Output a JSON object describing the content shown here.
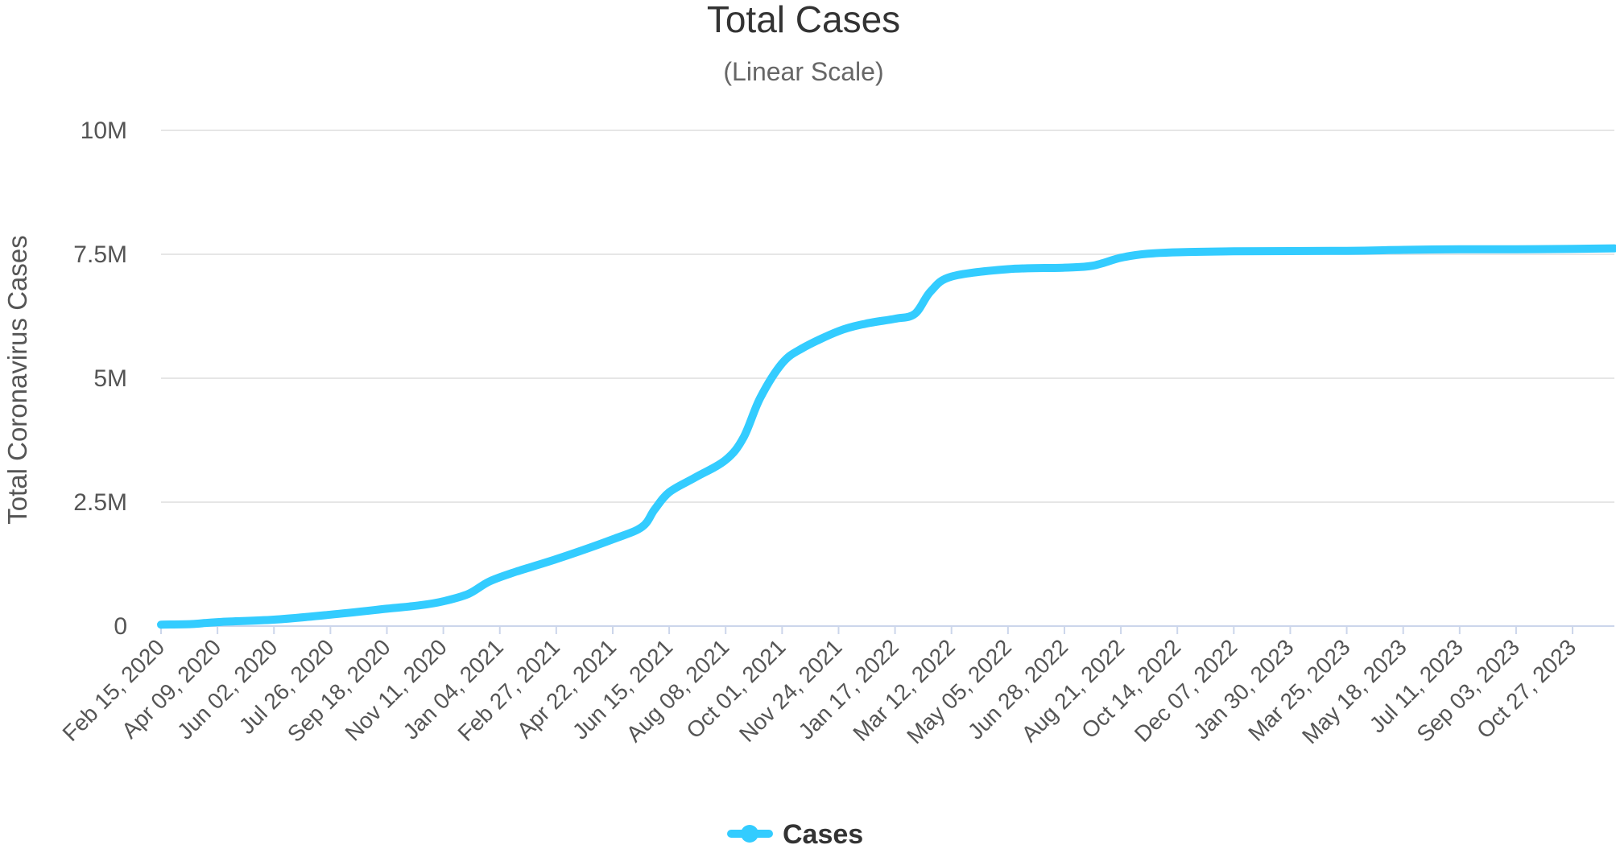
{
  "chart_data": {
    "type": "line",
    "title": "Total Cases",
    "subtitle": "(Linear Scale)",
    "ylabel": "Total Coronavirus Cases",
    "xlabel": "",
    "ylim": [
      0,
      10000000
    ],
    "y_ticks": [
      {
        "value": 0,
        "label": "0"
      },
      {
        "value": 2500000,
        "label": "2.5M"
      },
      {
        "value": 5000000,
        "label": "5M"
      },
      {
        "value": 7500000,
        "label": "7.5M"
      },
      {
        "value": 10000000,
        "label": "10M"
      }
    ],
    "x_start": "2020-02-15",
    "x_end": "2023-12-06",
    "x_ticks": [
      {
        "date": "2020-02-15",
        "label": "Feb 15, 2020"
      },
      {
        "date": "2020-04-09",
        "label": "Apr 09, 2020"
      },
      {
        "date": "2020-06-02",
        "label": "Jun 02, 2020"
      },
      {
        "date": "2020-07-26",
        "label": "Jul 26, 2020"
      },
      {
        "date": "2020-09-18",
        "label": "Sep 18, 2020"
      },
      {
        "date": "2020-11-11",
        "label": "Nov 11, 2020"
      },
      {
        "date": "2021-01-04",
        "label": "Jan 04, 2021"
      },
      {
        "date": "2021-02-27",
        "label": "Feb 27, 2021"
      },
      {
        "date": "2021-04-22",
        "label": "Apr 22, 2021"
      },
      {
        "date": "2021-06-15",
        "label": "Jun 15, 2021"
      },
      {
        "date": "2021-08-08",
        "label": "Aug 08, 2021"
      },
      {
        "date": "2021-10-01",
        "label": "Oct 01, 2021"
      },
      {
        "date": "2021-11-24",
        "label": "Nov 24, 2021"
      },
      {
        "date": "2022-01-17",
        "label": "Jan 17, 2022"
      },
      {
        "date": "2022-03-12",
        "label": "Mar 12, 2022"
      },
      {
        "date": "2022-05-05",
        "label": "May 05, 2022"
      },
      {
        "date": "2022-06-28",
        "label": "Jun 28, 2022"
      },
      {
        "date": "2022-08-21",
        "label": "Aug 21, 2022"
      },
      {
        "date": "2022-10-14",
        "label": "Oct 14, 2022"
      },
      {
        "date": "2022-12-07",
        "label": "Dec 07, 2022"
      },
      {
        "date": "2023-01-30",
        "label": "Jan 30, 2023"
      },
      {
        "date": "2023-03-25",
        "label": "Mar 25, 2023"
      },
      {
        "date": "2023-05-18",
        "label": "May 18, 2023"
      },
      {
        "date": "2023-07-11",
        "label": "Jul 11, 2023"
      },
      {
        "date": "2023-09-03",
        "label": "Sep 03, 2023"
      },
      {
        "date": "2023-10-27",
        "label": "Oct 27, 2023"
      }
    ],
    "series": [
      {
        "name": "Cases",
        "color": "#33ccff",
        "points": [
          {
            "date": "2020-02-15",
            "value": 30000
          },
          {
            "date": "2020-03-15",
            "value": 40000
          },
          {
            "date": "2020-04-09",
            "value": 80000
          },
          {
            "date": "2020-06-02",
            "value": 130000
          },
          {
            "date": "2020-07-26",
            "value": 230000
          },
          {
            "date": "2020-09-18",
            "value": 350000
          },
          {
            "date": "2020-10-20",
            "value": 420000
          },
          {
            "date": "2020-11-11",
            "value": 500000
          },
          {
            "date": "2020-12-05",
            "value": 650000
          },
          {
            "date": "2020-12-25",
            "value": 900000
          },
          {
            "date": "2021-01-20",
            "value": 1100000
          },
          {
            "date": "2021-02-27",
            "value": 1350000
          },
          {
            "date": "2021-04-22",
            "value": 1750000
          },
          {
            "date": "2021-05-20",
            "value": 2000000
          },
          {
            "date": "2021-06-01",
            "value": 2350000
          },
          {
            "date": "2021-06-15",
            "value": 2700000
          },
          {
            "date": "2021-07-10",
            "value": 3000000
          },
          {
            "date": "2021-08-08",
            "value": 3350000
          },
          {
            "date": "2021-08-25",
            "value": 3800000
          },
          {
            "date": "2021-09-10",
            "value": 4600000
          },
          {
            "date": "2021-10-01",
            "value": 5300000
          },
          {
            "date": "2021-10-20",
            "value": 5600000
          },
          {
            "date": "2021-11-24",
            "value": 5950000
          },
          {
            "date": "2021-12-20",
            "value": 6100000
          },
          {
            "date": "2022-01-17",
            "value": 6200000
          },
          {
            "date": "2022-02-05",
            "value": 6300000
          },
          {
            "date": "2022-02-20",
            "value": 6750000
          },
          {
            "date": "2022-03-12",
            "value": 7050000
          },
          {
            "date": "2022-05-05",
            "value": 7200000
          },
          {
            "date": "2022-06-28",
            "value": 7230000
          },
          {
            "date": "2022-07-25",
            "value": 7270000
          },
          {
            "date": "2022-08-21",
            "value": 7430000
          },
          {
            "date": "2022-09-15",
            "value": 7510000
          },
          {
            "date": "2022-10-14",
            "value": 7540000
          },
          {
            "date": "2022-12-07",
            "value": 7560000
          },
          {
            "date": "2023-03-25",
            "value": 7570000
          },
          {
            "date": "2023-05-18",
            "value": 7590000
          },
          {
            "date": "2023-07-11",
            "value": 7600000
          },
          {
            "date": "2023-09-03",
            "value": 7600000
          },
          {
            "date": "2023-10-27",
            "value": 7610000
          },
          {
            "date": "2023-12-06",
            "value": 7620000
          }
        ]
      }
    ],
    "legend": {
      "position": "bottom-center",
      "label": "Cases",
      "color": "#33ccff"
    },
    "grid": true
  }
}
